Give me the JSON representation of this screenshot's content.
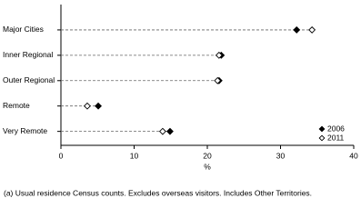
{
  "chart_data": {
    "type": "dot",
    "categories": [
      "Major Cities",
      "Inner Regional",
      "Outer Regional",
      "Remote",
      "Very Remote"
    ],
    "series": [
      {
        "name": "2006",
        "color": "#000000",
        "filled": true,
        "values": [
          32.2,
          21.9,
          21.6,
          5.1,
          14.9
        ]
      },
      {
        "name": "2011",
        "color": "#000000",
        "filled": false,
        "values": [
          34.3,
          21.6,
          21.4,
          3.6,
          13.9
        ]
      }
    ],
    "xlim": [
      0,
      40
    ],
    "xticks": [
      0,
      10,
      20,
      30,
      40
    ],
    "xlabel": "%",
    "legend": "lower right",
    "footnote": "(a) Usual residence Census counts. Excludes overseas visitors. Includes Other Territories."
  }
}
